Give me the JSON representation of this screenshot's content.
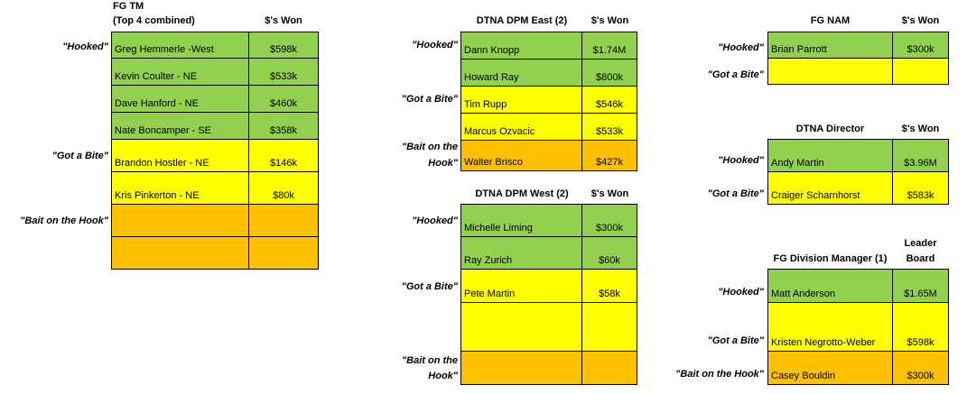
{
  "fgtm": {
    "title1": "FG TM",
    "title2": "(Top 4 combined)",
    "won_header": "$'s Won",
    "cat_hooked": "\"Hooked\"",
    "cat_bite": "\"Got a Bite\"",
    "cat_bait": "\"Bait on the Hook\"",
    "rows": [
      {
        "name": "Greg Hemmerle -West",
        "amount": "$598k"
      },
      {
        "name": "Kevin Coulter - NE",
        "amount": "$533k"
      },
      {
        "name": "Dave Hanford - NE",
        "amount": "$460k"
      },
      {
        "name": "Nate Boncamper - SE",
        "amount": "$358k"
      },
      {
        "name": "Brandon Hostler - NE",
        "amount": "$146k"
      },
      {
        "name": "Kris Pinkerton - NE",
        "amount": "$80k"
      },
      {
        "name": "",
        "amount": ""
      },
      {
        "name": "",
        "amount": ""
      }
    ]
  },
  "dtna_east": {
    "title": "DTNA DPM East (2)",
    "won_header": "$'s Won",
    "cat_hooked": "\"Hooked\"",
    "cat_bite": "\"Got a Bite\"",
    "cat_bait_1": "\"Bait on the",
    "cat_bait_2": "Hook\"",
    "rows": [
      {
        "name": "Dann Knopp",
        "amount": "$1.74M"
      },
      {
        "name": "Howard Ray",
        "amount": "$800k"
      },
      {
        "name": "Tim Rupp",
        "amount": "$546k"
      },
      {
        "name": "Marcus Ozvacic",
        "amount": "$533k"
      },
      {
        "name": "Walter Brisco",
        "amount": "$427k"
      }
    ]
  },
  "dtna_west": {
    "title": "DTNA DPM West (2)",
    "won_header": "$'s Won",
    "cat_hooked": "\"Hooked\"",
    "cat_bite": "\"Got a Bite\"",
    "cat_bait_1": "\"Bait on the",
    "cat_bait_2": "Hook\"",
    "rows": [
      {
        "name": "Michelle Liming",
        "amount": "$300k"
      },
      {
        "name": "Ray Zurich",
        "amount": "$60k"
      },
      {
        "name": "Pete Martin",
        "amount": "$58k"
      },
      {
        "name": "",
        "amount": ""
      },
      {
        "name": "",
        "amount": ""
      }
    ]
  },
  "fg_nam": {
    "title": "FG NAM",
    "won_header": "$'s Won",
    "cat_hooked": "\"Hooked\"",
    "cat_bite": "\"Got a Bite\"",
    "rows": [
      {
        "name": "Brian Parrott",
        "amount": "$300k"
      },
      {
        "name": "",
        "amount": ""
      }
    ]
  },
  "dtna_director": {
    "title": "DTNA Director",
    "won_header": "$'s Won",
    "cat_hooked": "\"Hooked\"",
    "cat_bite": "\"Got a Bite\"",
    "rows": [
      {
        "name": "Andy Martin",
        "amount": "$3.96M"
      },
      {
        "name": "Craiger Scharnhorst",
        "amount": "$583k"
      }
    ]
  },
  "fg_division": {
    "title": "FG Division Manager (1)",
    "board_header_1": "Leader",
    "board_header_2": "Board",
    "cat_hooked": "\"Hooked\"",
    "cat_bite": "\"Got a Bite\"",
    "cat_bait": "\"Bait on the Hook\"",
    "rows": [
      {
        "name": "Matt Anderson",
        "amount": "$1.65M"
      },
      {
        "name": "Kristen Negrotto-Weber",
        "amount": "$598k"
      },
      {
        "name": "Casey Bouldin",
        "amount": "$300k"
      }
    ]
  },
  "colors": {
    "hooked": "#92d050",
    "got_a_bite": "#ffff00",
    "bait_on_the_hook": "#ffc000"
  }
}
